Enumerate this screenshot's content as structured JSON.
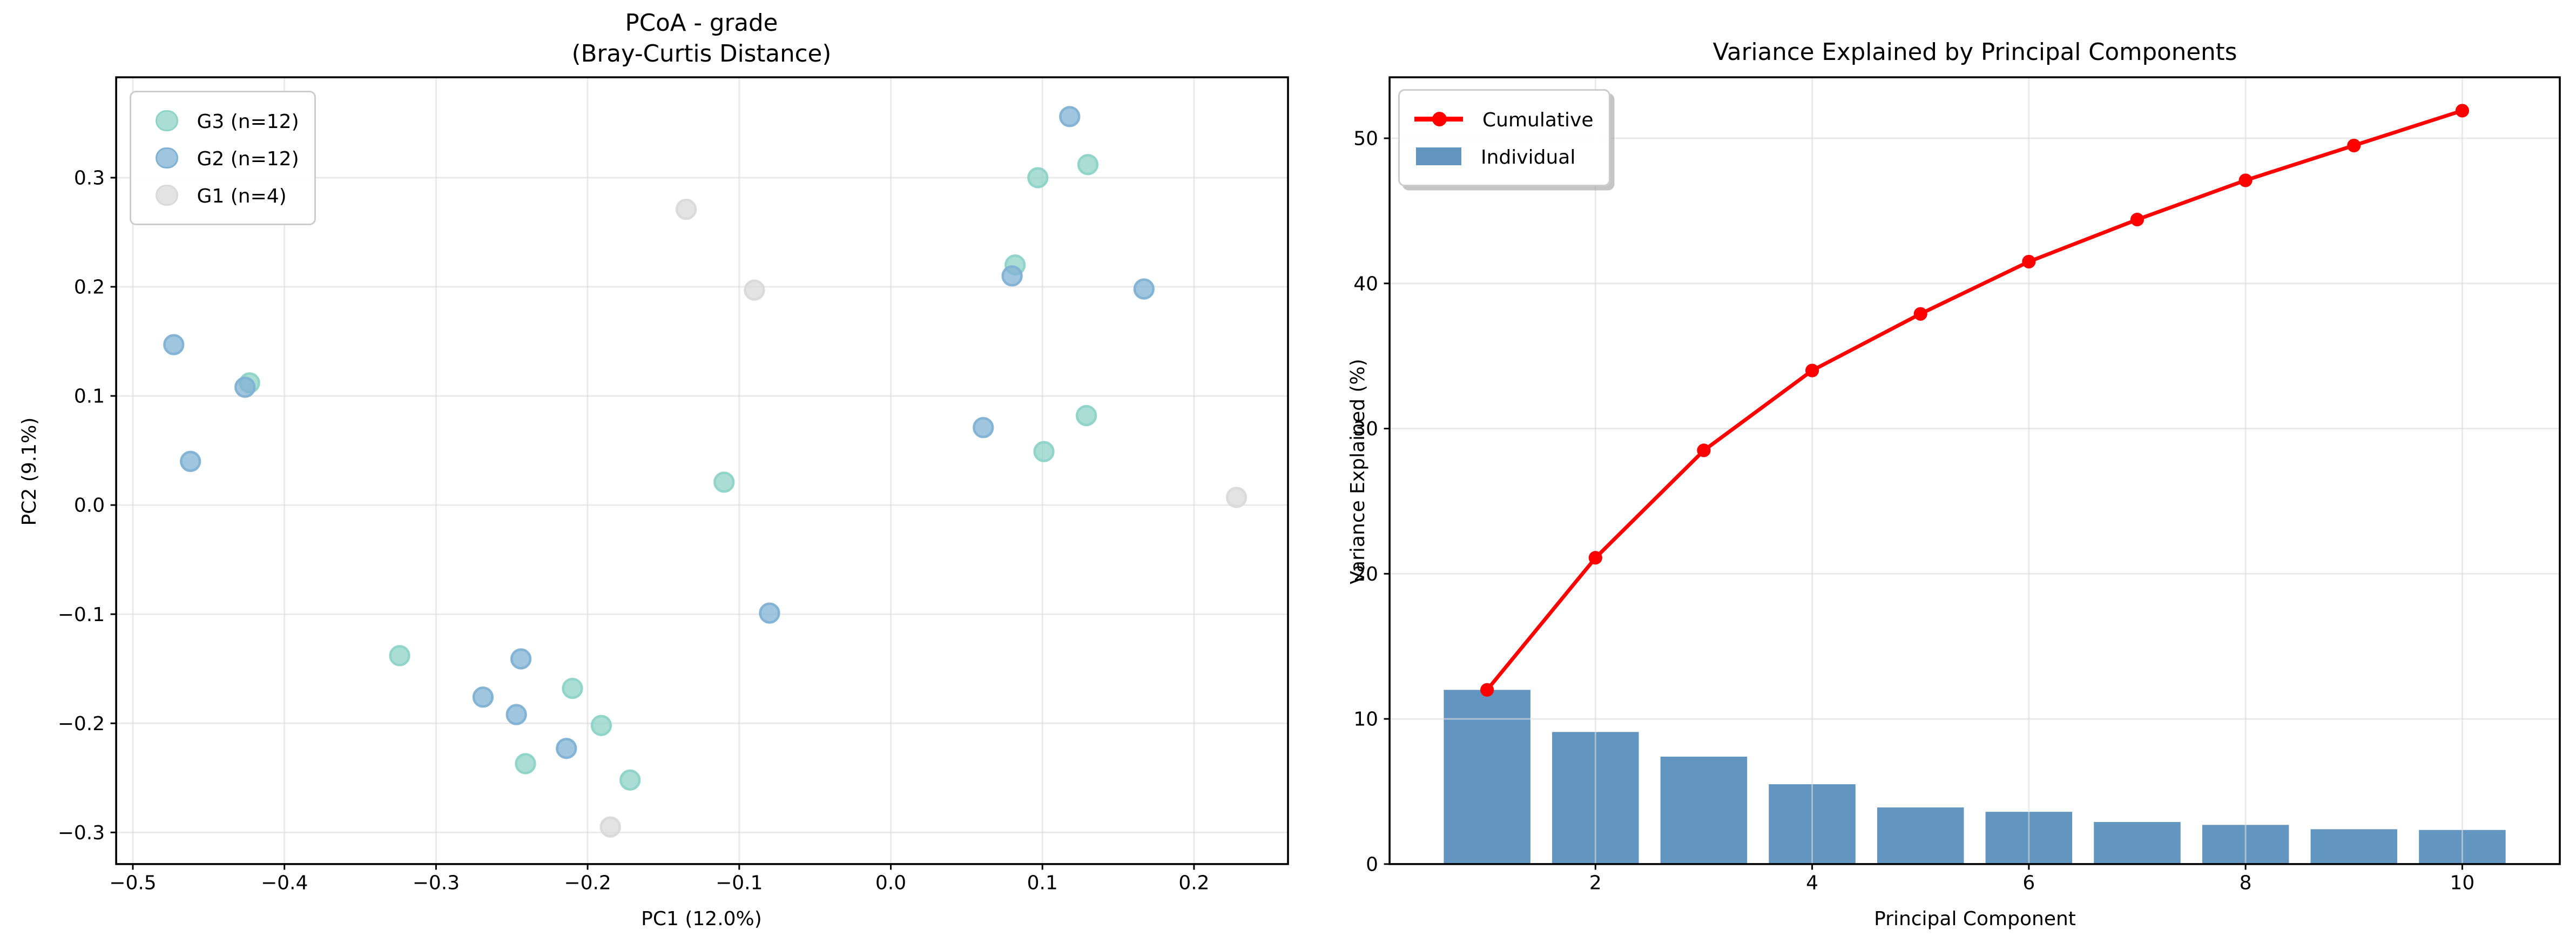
{
  "figure": {
    "background": "#ffffff",
    "kind": "matplotlib-dual-panel"
  },
  "chart_data": [
    {
      "type": "scatter",
      "title_lines": [
        "PCoA - grade",
        "(Bray-Curtis Distance)"
      ],
      "xlabel": "PC1 (12.0%)",
      "ylabel": "PC2 (9.1%)",
      "xlim": [
        -0.511,
        0.262
      ],
      "ylim": [
        -0.329,
        0.392
      ],
      "xticks": [
        -0.5,
        -0.4,
        -0.3,
        -0.2,
        -0.1,
        0.0,
        0.1,
        0.2
      ],
      "yticks": [
        0.3,
        0.2,
        0.1,
        0.0,
        -0.1,
        -0.2,
        -0.3
      ],
      "grid": true,
      "legend_position": "upper left",
      "series": [
        {
          "name": "G3 (n=12)",
          "color": "#8dd3c7",
          "fill_opacity": 0.75,
          "points": [
            [
              -0.423,
              0.112
            ],
            [
              -0.324,
              -0.138
            ],
            [
              -0.241,
              -0.237
            ],
            [
              -0.21,
              -0.168
            ],
            [
              -0.191,
              -0.202
            ],
            [
              -0.172,
              -0.252
            ],
            [
              -0.11,
              0.021
            ],
            [
              0.082,
              0.22
            ],
            [
              0.097,
              0.3
            ],
            [
              0.101,
              0.049
            ],
            [
              0.129,
              0.082
            ],
            [
              0.13,
              0.312
            ]
          ]
        },
        {
          "name": "G2 (n=12)",
          "color": "#80b1d3",
          "fill_opacity": 0.75,
          "points": [
            [
              -0.473,
              0.147
            ],
            [
              -0.462,
              0.04
            ],
            [
              -0.426,
              0.108
            ],
            [
              -0.269,
              -0.176
            ],
            [
              -0.247,
              -0.192
            ],
            [
              -0.244,
              -0.141
            ],
            [
              -0.214,
              -0.223
            ],
            [
              -0.08,
              -0.099
            ],
            [
              0.061,
              0.071
            ],
            [
              0.08,
              0.21
            ],
            [
              0.118,
              0.356
            ],
            [
              0.167,
              0.198
            ]
          ]
        },
        {
          "name": "G1 (n=4)",
          "color": "#d9d9d9",
          "fill_opacity": 0.75,
          "points": [
            [
              -0.135,
              0.271
            ],
            [
              -0.09,
              0.197
            ],
            [
              -0.185,
              -0.295
            ],
            [
              0.228,
              0.007
            ]
          ]
        }
      ]
    },
    {
      "type": "bar+line",
      "title": "Variance Explained by Principal Components",
      "xlabel": "Principal Component",
      "ylabel": "Variance Explained (%)",
      "categories": [
        1,
        2,
        3,
        4,
        5,
        6,
        7,
        8,
        9,
        10
      ],
      "xticks": [
        2,
        4,
        6,
        8,
        10
      ],
      "yticks": [
        0,
        10,
        20,
        30,
        40,
        50
      ],
      "xlim": [
        0.1,
        10.9
      ],
      "ylim": [
        0,
        54.2
      ],
      "grid": true,
      "legend_position": "upper left",
      "series": [
        {
          "name": "Individual",
          "type": "bar",
          "color": "#4682b4",
          "fill_opacity": 0.85,
          "values": [
            12.0,
            9.1,
            7.4,
            5.5,
            3.9,
            3.6,
            2.9,
            2.7,
            2.4,
            2.35
          ]
        },
        {
          "name": "Cumulative",
          "type": "line",
          "color": "#ff0000",
          "values": [
            12.0,
            21.1,
            28.5,
            34.0,
            37.9,
            41.5,
            44.4,
            47.1,
            49.5,
            51.9
          ]
        }
      ]
    }
  ]
}
